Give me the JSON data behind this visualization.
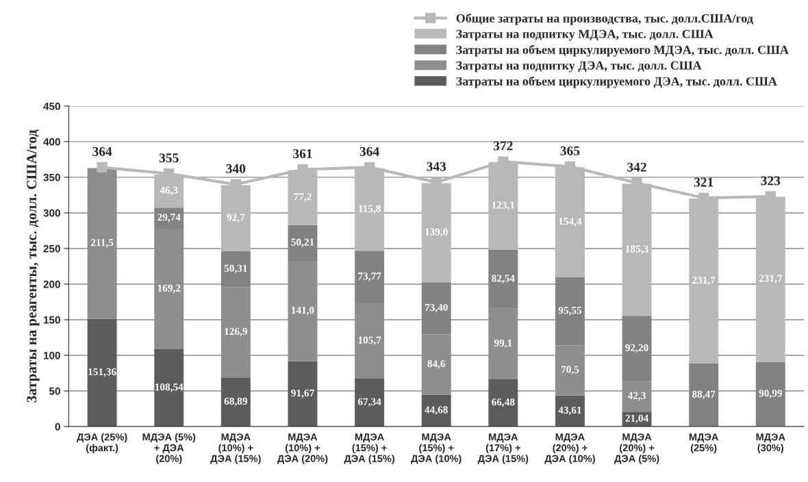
{
  "chart_data": {
    "type": "bar",
    "stacked": true,
    "ylabel": "Затраты на реагенты, тыс. долл. США/год",
    "categories": [
      "ДЭА (25%)\n(факт.)",
      "МДЭА (5%)\n+ ДЭА\n(20%)",
      "МДЭА\n(10%) +\nДЭА (15%)",
      "МДЭА\n(10%) +\nДЭА (20%)",
      "МДЭА\n(15%) +\nДЭА (15%)",
      "МДЭА\n(15%) +\nДЭА (10%)",
      "МДЭА\n(17%) +\nДЭА (15%)",
      "МДЭА\n(20%) +\nДЭА (10%)",
      "МДЭА\n(20%) +\nДЭА (5%)",
      "МДЭА\n(25%)",
      "МДЭА\n(30%)"
    ],
    "series": [
      {
        "name": "Затраты на объем циркулируемого ДЭА, тыс. долл. США",
        "color": "#5c5c5c",
        "values": [
          151.36,
          108.54,
          68.89,
          91.67,
          67.34,
          44.68,
          66.48,
          43.61,
          21.04,
          null,
          null
        ],
        "value_labels": [
          "151,36",
          "108,54",
          "68,89",
          "91,67",
          "67,34",
          "44,68",
          "66,48",
          "43,61",
          "21,04",
          null,
          null
        ]
      },
      {
        "name": "Затраты на подпитку ДЭА, тыс. долл. США",
        "color": "#8e8e8e",
        "values": [
          211.5,
          169.2,
          126.9,
          141.0,
          105.7,
          84.6,
          99.1,
          70.5,
          42.3,
          null,
          null
        ],
        "value_labels": [
          "211,5",
          "169,2",
          "126,9",
          "141,0",
          "105,7",
          "84,6",
          "99,1",
          "70,5",
          "42,3",
          null,
          null
        ]
      },
      {
        "name": "Затраты на объем циркулируемого МДЭА, тыс. долл. США",
        "color": "#828282",
        "values": [
          null,
          29.74,
          50.31,
          50.21,
          73.77,
          73.4,
          82.54,
          95.55,
          92.2,
          88.47,
          90.99
        ],
        "value_labels": [
          null,
          "29,74",
          "50,31",
          "50,21",
          "73,77",
          "73,40",
          "82,54",
          "95,55",
          "92,20",
          "88,47",
          "90,99"
        ]
      },
      {
        "name": "Затраты на подпитку МДЭА, тыс. долл. США",
        "color": "#b8b8b8",
        "values": [
          null,
          46.3,
          92.7,
          77.2,
          115.8,
          139.0,
          123.1,
          154.4,
          185.3,
          231.7,
          231.7
        ],
        "value_labels": [
          null,
          "46,3",
          "92,7",
          "77,2",
          "115,8",
          "139,0",
          "123,1",
          "154,4",
          "185,3",
          "231,7",
          "231,7"
        ]
      },
      {
        "name": "Общие затраты на производства, тыс. долл.США/год",
        "type": "line",
        "color": "#b8b8b8",
        "marker": "square",
        "values": [
          364,
          355,
          340,
          361,
          364,
          343,
          372,
          365,
          342,
          321,
          323
        ],
        "data_labels": true
      }
    ],
    "ylim": [
      0,
      450
    ],
    "yticks": [
      0,
      50,
      100,
      150,
      200,
      250,
      300,
      350,
      400,
      450
    ],
    "grid": "y",
    "legend": "top right"
  }
}
